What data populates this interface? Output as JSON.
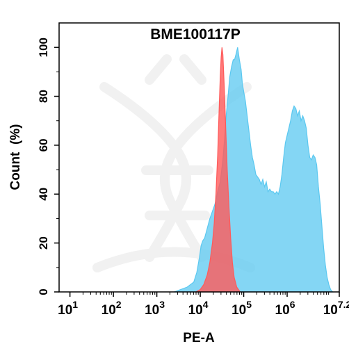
{
  "chart_data": {
    "type": "area",
    "title": "BME100117P",
    "xlabel": "PE-A",
    "ylabel": "Count  (%)",
    "x_scale": "log10",
    "xlim_log10": [
      0.75,
      7.2
    ],
    "ylim": [
      0,
      110
    ],
    "x_ticks": [
      {
        "base": "10",
        "exp": "1"
      },
      {
        "base": "10",
        "exp": "2"
      },
      {
        "base": "10",
        "exp": "3"
      },
      {
        "base": "10",
        "exp": "4"
      },
      {
        "base": "10",
        "exp": "5"
      },
      {
        "base": "10",
        "exp": "6"
      },
      {
        "base": "10",
        "exp": "7.2"
      }
    ],
    "y_ticks": [
      "0",
      "20",
      "40",
      "60",
      "80",
      "100"
    ],
    "grid": false,
    "legend": "none",
    "series": [
      {
        "color": "#5bc8f0",
        "fill_opacity": 0.75,
        "points": [
          [
            3.4,
            0
          ],
          [
            3.55,
            1
          ],
          [
            3.7,
            2
          ],
          [
            3.85,
            4
          ],
          [
            3.92,
            8
          ],
          [
            3.98,
            14
          ],
          [
            4.02,
            19
          ],
          [
            4.06,
            21
          ],
          [
            4.1,
            22
          ],
          [
            4.16,
            26
          ],
          [
            4.22,
            30
          ],
          [
            4.28,
            33
          ],
          [
            4.34,
            36
          ],
          [
            4.4,
            41
          ],
          [
            4.46,
            45
          ],
          [
            4.52,
            54
          ],
          [
            4.56,
            63
          ],
          [
            4.6,
            73
          ],
          [
            4.64,
            80
          ],
          [
            4.68,
            88
          ],
          [
            4.72,
            92
          ],
          [
            4.76,
            95
          ],
          [
            4.79,
            95
          ],
          [
            4.82,
            97
          ],
          [
            4.86,
            100
          ],
          [
            4.9,
            95
          ],
          [
            4.94,
            91
          ],
          [
            4.97,
            85
          ],
          [
            5.0,
            82
          ],
          [
            5.04,
            78
          ],
          [
            5.08,
            72
          ],
          [
            5.12,
            66
          ],
          [
            5.16,
            60
          ],
          [
            5.2,
            55
          ],
          [
            5.24,
            52
          ],
          [
            5.28,
            48
          ],
          [
            5.32,
            47
          ],
          [
            5.36,
            46
          ],
          [
            5.4,
            44
          ],
          [
            5.44,
            46
          ],
          [
            5.48,
            43
          ],
          [
            5.52,
            45
          ],
          [
            5.56,
            41
          ],
          [
            5.6,
            42
          ],
          [
            5.64,
            41
          ],
          [
            5.68,
            41
          ],
          [
            5.72,
            40
          ],
          [
            5.76,
            41
          ],
          [
            5.8,
            40
          ],
          [
            5.84,
            43
          ],
          [
            5.88,
            48
          ],
          [
            5.92,
            55
          ],
          [
            5.96,
            61
          ],
          [
            6.0,
            64
          ],
          [
            6.04,
            67
          ],
          [
            6.08,
            70
          ],
          [
            6.12,
            74
          ],
          [
            6.16,
            76
          ],
          [
            6.2,
            75
          ],
          [
            6.24,
            72
          ],
          [
            6.28,
            74
          ],
          [
            6.32,
            70
          ],
          [
            6.36,
            72
          ],
          [
            6.4,
            70
          ],
          [
            6.44,
            67
          ],
          [
            6.48,
            60
          ],
          [
            6.52,
            55
          ],
          [
            6.56,
            54
          ],
          [
            6.6,
            56
          ],
          [
            6.64,
            55
          ],
          [
            6.68,
            52
          ],
          [
            6.72,
            43
          ],
          [
            6.76,
            36
          ],
          [
            6.8,
            27
          ],
          [
            6.84,
            18
          ],
          [
            6.88,
            11
          ],
          [
            6.92,
            6
          ],
          [
            6.96,
            3
          ],
          [
            7.0,
            1
          ],
          [
            7.05,
            0
          ]
        ]
      },
      {
        "color": "#ff5a5a",
        "fill_opacity": 0.8,
        "points": [
          [
            3.9,
            0
          ],
          [
            4.0,
            1
          ],
          [
            4.08,
            3
          ],
          [
            4.16,
            7
          ],
          [
            4.22,
            12
          ],
          [
            4.28,
            20
          ],
          [
            4.32,
            28
          ],
          [
            4.36,
            40
          ],
          [
            4.4,
            56
          ],
          [
            4.43,
            72
          ],
          [
            4.46,
            88
          ],
          [
            4.48,
            96
          ],
          [
            4.5,
            100
          ],
          [
            4.52,
            97
          ],
          [
            4.55,
            85
          ],
          [
            4.58,
            70
          ],
          [
            4.62,
            50
          ],
          [
            4.66,
            35
          ],
          [
            4.7,
            22
          ],
          [
            4.74,
            12
          ],
          [
            4.78,
            6
          ],
          [
            4.84,
            2
          ],
          [
            4.92,
            0
          ]
        ]
      }
    ]
  }
}
